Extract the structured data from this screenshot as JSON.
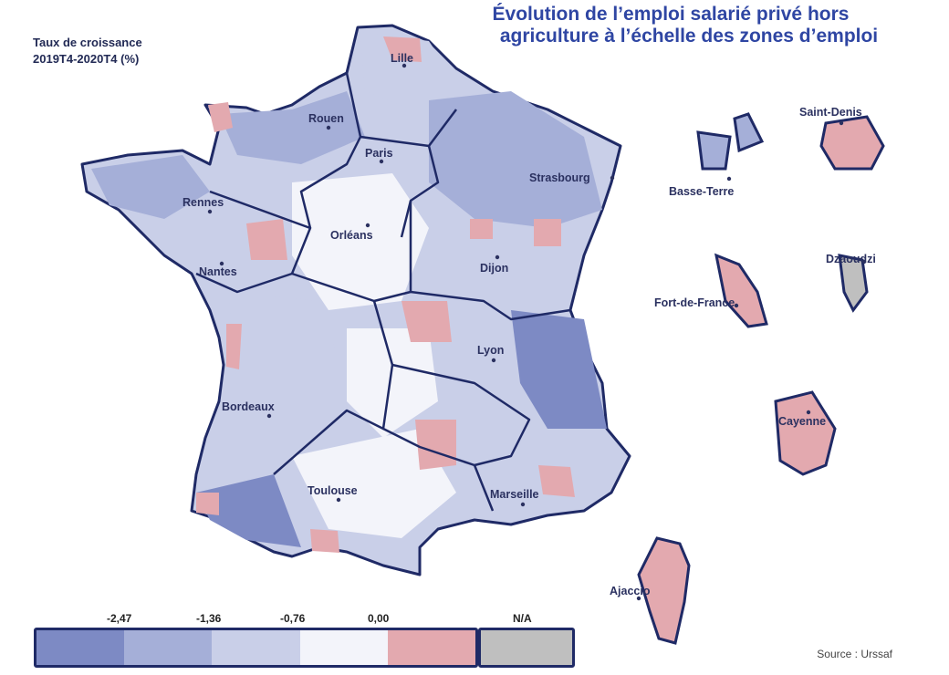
{
  "title": {
    "line1": "Évolution de l’emploi salarié privé hors",
    "line2": "agriculture à l’échelle des zones d’emploi"
  },
  "subtitle": {
    "line1": "Taux de croissance",
    "line2": "2019T4-2020T4 (%)"
  },
  "cities": {
    "lille": "Lille",
    "rouen": "Rouen",
    "paris": "Paris",
    "strasbourg": "Strasbourg",
    "rennes": "Rennes",
    "orleans": "Orléans",
    "nantes": "Nantes",
    "dijon": "Dijon",
    "lyon": "Lyon",
    "bordeaux": "Bordeaux",
    "toulouse": "Toulouse",
    "marseille": "Marseille",
    "ajaccio": "Ajaccio",
    "saint_denis": "Saint-Denis",
    "basse_terre": "Basse-Terre",
    "dzaoudzi": "Dzaoudzi",
    "fort_de_france": "Fort-de-France",
    "cayenne": "Cayenne"
  },
  "legend": {
    "thresholds": [
      "-2,47",
      "-1,36",
      "-0,76",
      "0,00"
    ],
    "na_label": "N/A",
    "colors": [
      "#7d8ac4",
      "#a5afd8",
      "#c9cfe8",
      "#f3f4fa",
      "#e3a9af"
    ],
    "na_color": "#bfbfbf"
  },
  "source": "Source : Urssaf"
}
